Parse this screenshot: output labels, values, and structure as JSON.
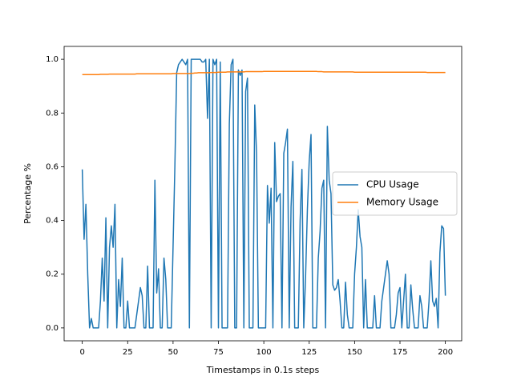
{
  "chart_data": {
    "type": "line",
    "xlabel": "Timestamps in 0.1s steps",
    "ylabel": "Percentage %",
    "x": [
      0,
      1,
      2,
      3,
      4,
      5,
      6,
      7,
      8,
      9,
      10,
      11,
      12,
      13,
      14,
      15,
      16,
      17,
      18,
      19,
      20,
      21,
      22,
      23,
      24,
      25,
      26,
      27,
      28,
      29,
      30,
      31,
      32,
      33,
      34,
      35,
      36,
      37,
      38,
      39,
      40,
      41,
      42,
      43,
      44,
      45,
      46,
      47,
      48,
      49,
      50,
      51,
      52,
      53,
      54,
      55,
      56,
      57,
      58,
      59,
      60,
      61,
      62,
      63,
      64,
      65,
      66,
      67,
      68,
      69,
      70,
      71,
      72,
      73,
      74,
      75,
      76,
      77,
      78,
      79,
      80,
      81,
      82,
      83,
      84,
      85,
      86,
      87,
      88,
      89,
      90,
      91,
      92,
      93,
      94,
      95,
      96,
      97,
      98,
      99,
      100,
      101,
      102,
      103,
      104,
      105,
      106,
      107,
      108,
      109,
      110,
      111,
      112,
      113,
      114,
      115,
      116,
      117,
      118,
      119,
      120,
      121,
      122,
      123,
      124,
      125,
      126,
      127,
      128,
      129,
      130,
      131,
      132,
      133,
      134,
      135,
      136,
      137,
      138,
      139,
      140,
      141,
      142,
      143,
      144,
      145,
      146,
      147,
      148,
      149,
      150,
      151,
      152,
      153,
      154,
      155,
      156,
      157,
      158,
      159,
      160,
      161,
      162,
      163,
      164,
      165,
      166,
      167,
      168,
      169,
      170,
      171,
      172,
      173,
      174,
      175,
      176,
      177,
      178,
      179,
      180,
      181,
      182,
      183,
      184,
      185,
      186,
      187,
      188,
      189,
      190,
      191,
      192,
      193,
      194,
      195,
      196,
      197,
      198,
      199,
      200
    ],
    "series": [
      {
        "name": "CPU Usage",
        "color": "#1f77b4",
        "values": [
          0.59,
          0.33,
          0.46,
          0.2,
          0,
          0.035,
          0,
          0,
          0,
          0,
          0.1,
          0.26,
          0.1,
          0.41,
          0,
          0.3,
          0.38,
          0.3,
          0.46,
          0,
          0.18,
          0.08,
          0.26,
          0,
          0,
          0.1,
          0,
          0,
          0,
          0,
          0.05,
          0.1,
          0.15,
          0.12,
          0,
          0,
          0.23,
          0,
          0,
          0,
          0.55,
          0.13,
          0.22,
          0,
          0,
          0.26,
          0.18,
          0,
          0,
          0,
          0.3,
          0.6,
          0.95,
          0.98,
          0.99,
          1.0,
          0.99,
          0.98,
          1.0,
          0,
          1.0,
          1.0,
          1.0,
          1.0,
          1.0,
          1.0,
          0.99,
          0.99,
          1.0,
          0.78,
          1.0,
          0,
          1.0,
          0.98,
          1.0,
          0,
          0.99,
          0,
          0,
          0,
          0,
          0.76,
          0.98,
          1.0,
          0,
          0,
          0.96,
          0.94,
          0.96,
          0,
          0.88,
          0.93,
          0,
          0,
          0,
          0.83,
          0.65,
          0,
          0,
          0,
          0,
          0,
          0.53,
          0.39,
          0.52,
          0,
          0.69,
          0.47,
          0.49,
          0.5,
          0,
          0.65,
          0.69,
          0.74,
          0,
          0.45,
          0.62,
          0,
          0,
          0,
          0.4,
          0.59,
          0,
          0.19,
          0.44,
          0.62,
          0.72,
          0,
          0,
          0,
          0.26,
          0.36,
          0.52,
          0.55,
          0,
          0.75,
          0.55,
          0.5,
          0.16,
          0.14,
          0.15,
          0.18,
          0.1,
          0,
          0,
          0.17,
          0.05,
          0,
          0,
          0,
          0.2,
          0.3,
          0.44,
          0.34,
          0.3,
          0,
          0.18,
          0,
          0,
          0,
          0,
          0.12,
          0,
          0,
          0,
          0.1,
          0.15,
          0.2,
          0.25,
          0.2,
          0,
          0,
          0,
          0.05,
          0.13,
          0.15,
          0,
          0.1,
          0.2,
          0,
          0,
          0.16,
          0.07,
          0,
          0,
          0,
          0.12,
          0.08,
          0,
          0,
          0,
          0.1,
          0.25,
          0.1,
          0.08,
          0.11,
          0,
          0.28,
          0.38,
          0.37,
          0.12
        ]
      },
      {
        "name": "Memory Usage",
        "color": "#ff7f0e",
        "values": [
          0.943,
          0.943,
          0.943,
          0.943,
          0.943,
          0.943,
          0.943,
          0.943,
          0.943,
          0.943,
          0.944,
          0.944,
          0.944,
          0.944,
          0.944,
          0.945,
          0.945,
          0.945,
          0.945,
          0.945,
          0.945,
          0.945,
          0.945,
          0.945,
          0.945,
          0.945,
          0.945,
          0.945,
          0.945,
          0.945,
          0.946,
          0.946,
          0.946,
          0.946,
          0.946,
          0.946,
          0.946,
          0.946,
          0.946,
          0.946,
          0.946,
          0.946,
          0.946,
          0.946,
          0.946,
          0.946,
          0.946,
          0.946,
          0.946,
          0.946,
          0.947,
          0.947,
          0.947,
          0.947,
          0.947,
          0.947,
          0.947,
          0.947,
          0.947,
          0.947,
          0.948,
          0.948,
          0.949,
          0.949,
          0.95,
          0.95,
          0.95,
          0.95,
          0.95,
          0.95,
          0.95,
          0.951,
          0.951,
          0.951,
          0.951,
          0.952,
          0.952,
          0.952,
          0.952,
          0.952,
          0.953,
          0.953,
          0.953,
          0.953,
          0.953,
          0.953,
          0.953,
          0.953,
          0.953,
          0.953,
          0.954,
          0.954,
          0.954,
          0.954,
          0.954,
          0.954,
          0.954,
          0.954,
          0.954,
          0.954,
          0.955,
          0.955,
          0.955,
          0.955,
          0.955,
          0.955,
          0.955,
          0.955,
          0.955,
          0.955,
          0.955,
          0.955,
          0.955,
          0.955,
          0.955,
          0.955,
          0.955,
          0.955,
          0.955,
          0.955,
          0.955,
          0.955,
          0.955,
          0.955,
          0.955,
          0.955,
          0.955,
          0.955,
          0.955,
          0.955,
          0.954,
          0.954,
          0.954,
          0.953,
          0.953,
          0.953,
          0.953,
          0.953,
          0.953,
          0.953,
          0.953,
          0.953,
          0.953,
          0.953,
          0.953,
          0.953,
          0.953,
          0.953,
          0.953,
          0.953,
          0.952,
          0.952,
          0.952,
          0.952,
          0.952,
          0.952,
          0.952,
          0.952,
          0.952,
          0.952,
          0.952,
          0.952,
          0.952,
          0.952,
          0.952,
          0.952,
          0.952,
          0.952,
          0.952,
          0.952,
          0.952,
          0.952,
          0.952,
          0.952,
          0.952,
          0.952,
          0.952,
          0.952,
          0.952,
          0.952,
          0.952,
          0.952,
          0.952,
          0.952,
          0.952,
          0.952,
          0.952,
          0.952,
          0.952,
          0.952,
          0.951,
          0.951,
          0.951,
          0.951,
          0.951,
          0.951,
          0.951,
          0.951,
          0.951,
          0.951,
          0.951
        ]
      }
    ],
    "xlim": [
      -10,
      209
    ],
    "xticks": [
      0,
      25,
      50,
      75,
      100,
      125,
      150,
      175,
      200
    ],
    "ylim": [
      -0.048,
      1.048
    ],
    "yticks": [
      {
        "value": 0,
        "label": "0.0"
      },
      {
        "value": 0.2,
        "label": "0.2"
      },
      {
        "value": 0.4,
        "label": "0.4"
      },
      {
        "value": 0.6,
        "label": "0.6"
      },
      {
        "value": 0.8,
        "label": "0.8"
      },
      {
        "value": 1,
        "label": "1.0"
      }
    ],
    "legend": "center right",
    "grid": false
  }
}
